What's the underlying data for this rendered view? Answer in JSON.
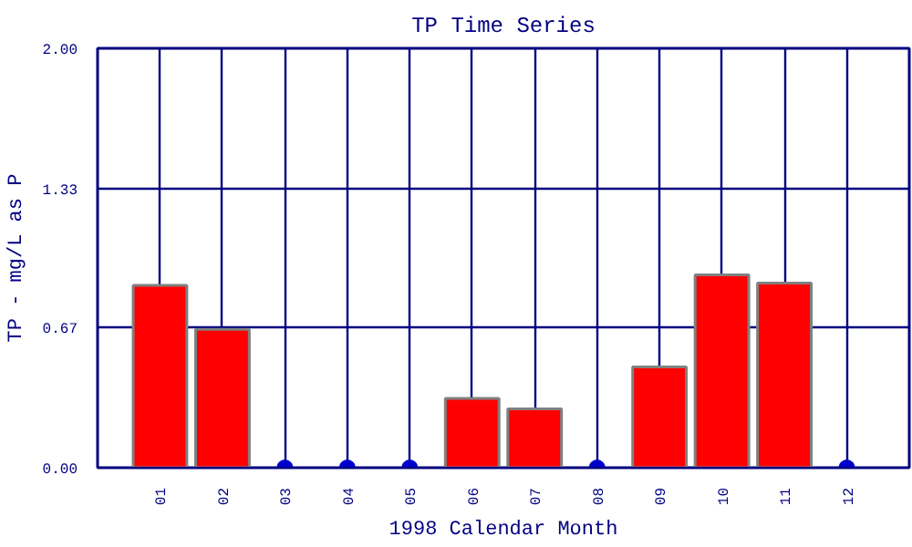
{
  "chart_data": {
    "type": "bar",
    "title": "TP Time Series",
    "xlabel": "1998 Calendar Month",
    "ylabel": "TP - mg/L as P",
    "categories": [
      "01",
      "02",
      "03",
      "04",
      "05",
      "06",
      "07",
      "08",
      "09",
      "10",
      "11",
      "12"
    ],
    "series": [
      {
        "color": "#ff0000",
        "values": [
          0.87,
          0.66,
          null,
          null,
          null,
          0.33,
          0.28,
          null,
          0.48,
          0.92,
          0.88,
          null
        ]
      },
      {
        "type": "scatter",
        "color": "#0000cc",
        "x": [
          "03",
          "04",
          "05",
          "08",
          "12"
        ],
        "values": [
          0,
          0,
          0,
          0,
          0
        ]
      }
    ],
    "ylim": [
      0,
      2.0
    ],
    "yticks": [
      {
        "value": 0,
        "label": "0.00"
      },
      {
        "value": 0.67,
        "label": "0.67"
      },
      {
        "value": 1.33,
        "label": "1.33"
      },
      {
        "value": 2.0,
        "label": "2.00"
      }
    ],
    "grid": true,
    "marker": "circle"
  }
}
